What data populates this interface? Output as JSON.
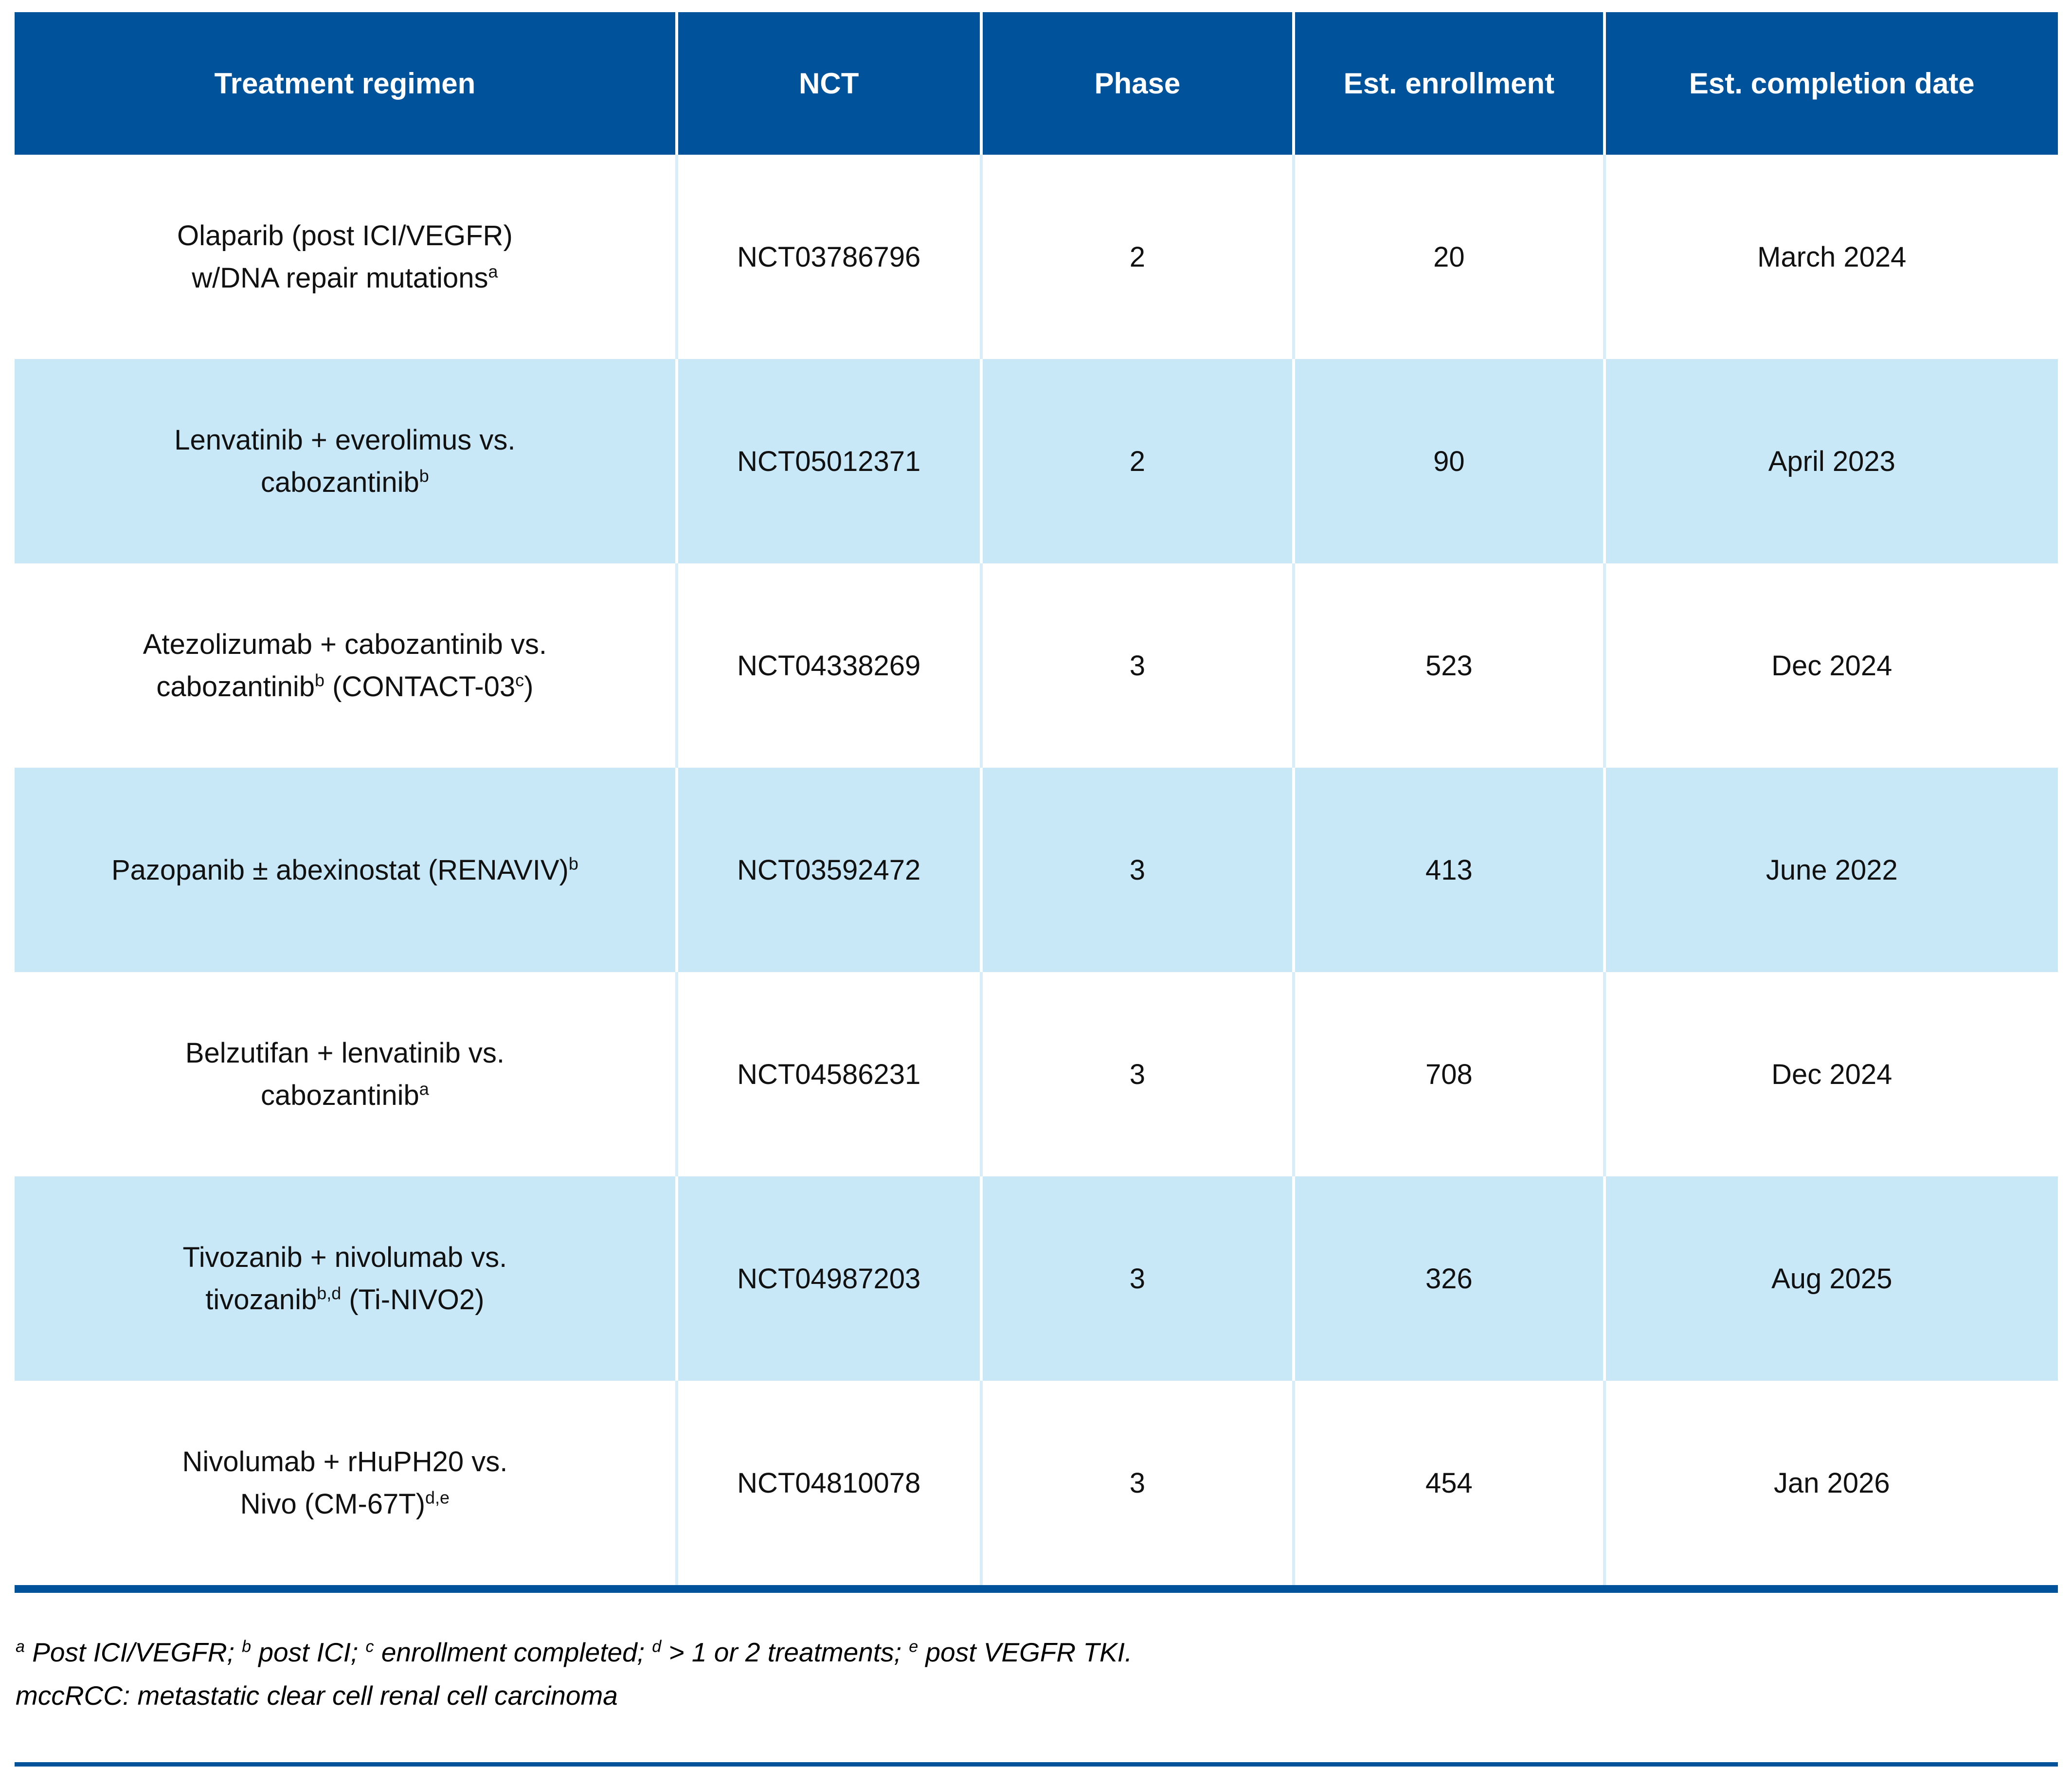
{
  "colors": {
    "header_bg": "#00539B",
    "row_alt_bg": "#C8E8F7",
    "rule": "#00539B"
  },
  "header": {
    "columns": [
      "Treatment regimen",
      "NCT",
      "Phase",
      "Est. enrollment",
      "Est. completion date"
    ]
  },
  "rows": [
    {
      "zebra": "white",
      "regimen": [
        {
          "text": "Olaparib (post ICI/VEGFR)"
        },
        {
          "break": true
        },
        {
          "text": "w/DNA repair mutations"
        },
        {
          "sup": "a"
        }
      ],
      "nct": "NCT03786796",
      "phase": "2",
      "enrollment": "20",
      "completion": "March 2024"
    },
    {
      "zebra": "blue",
      "regimen": [
        {
          "text": "Lenvatinib + everolimus vs."
        },
        {
          "break": true
        },
        {
          "text": "cabozantinib"
        },
        {
          "sup": "b"
        }
      ],
      "nct": "NCT05012371",
      "phase": "2",
      "enrollment": "90",
      "completion": "April 2023"
    },
    {
      "zebra": "white",
      "regimen": [
        {
          "text": "Atezolizumab + cabozantinib vs."
        },
        {
          "break": true
        },
        {
          "text": "cabozantinib"
        },
        {
          "sup": "b"
        },
        {
          "text": " (CONTACT-03"
        },
        {
          "sup": "c"
        },
        {
          "text": ")"
        }
      ],
      "nct": "NCT04338269",
      "phase": "3",
      "enrollment": "523",
      "completion": "Dec 2024"
    },
    {
      "zebra": "blue",
      "regimen": [
        {
          "text": "Pazopanib ± abexinostat (RENAVIV)"
        },
        {
          "sup": "b"
        }
      ],
      "nct": "NCT03592472",
      "phase": "3",
      "enrollment": "413",
      "completion": "June 2022"
    },
    {
      "zebra": "white",
      "regimen": [
        {
          "text": "Belzutifan + lenvatinib vs."
        },
        {
          "break": true
        },
        {
          "text": "cabozantinib"
        },
        {
          "sup": "a"
        }
      ],
      "nct": "NCT04586231",
      "phase": "3",
      "enrollment": "708",
      "completion": "Dec 2024"
    },
    {
      "zebra": "blue",
      "regimen": [
        {
          "text": "Tivozanib + nivolumab vs."
        },
        {
          "break": true
        },
        {
          "text": "tivozanib"
        },
        {
          "sup": "b,d"
        },
        {
          "text": " (Ti-NIVO2)"
        }
      ],
      "nct": "NCT04987203",
      "phase": "3",
      "enrollment": "326",
      "completion": "Aug 2025"
    },
    {
      "zebra": "white",
      "regimen": [
        {
          "text": "Nivolumab + rHuPH20 vs."
        },
        {
          "break": true
        },
        {
          "text": "Nivo (CM-67T)"
        },
        {
          "sup": "d,e"
        }
      ],
      "nct": "NCT04810078",
      "phase": "3",
      "enrollment": "454",
      "completion": "Jan 2026"
    }
  ],
  "footnotes": {
    "line1": [
      {
        "sup": "a"
      },
      {
        "text": " Post ICI/VEGFR; "
      },
      {
        "sup": "b"
      },
      {
        "text": " post ICI; "
      },
      {
        "sup": "c"
      },
      {
        "text": " enrollment completed; "
      },
      {
        "sup": "d"
      },
      {
        "text": " > 1 or 2 treatments; "
      },
      {
        "sup": "e"
      },
      {
        "text": " post VEGFR TKI."
      }
    ],
    "line2": "mccRCC: metastatic clear cell renal cell carcinoma"
  }
}
